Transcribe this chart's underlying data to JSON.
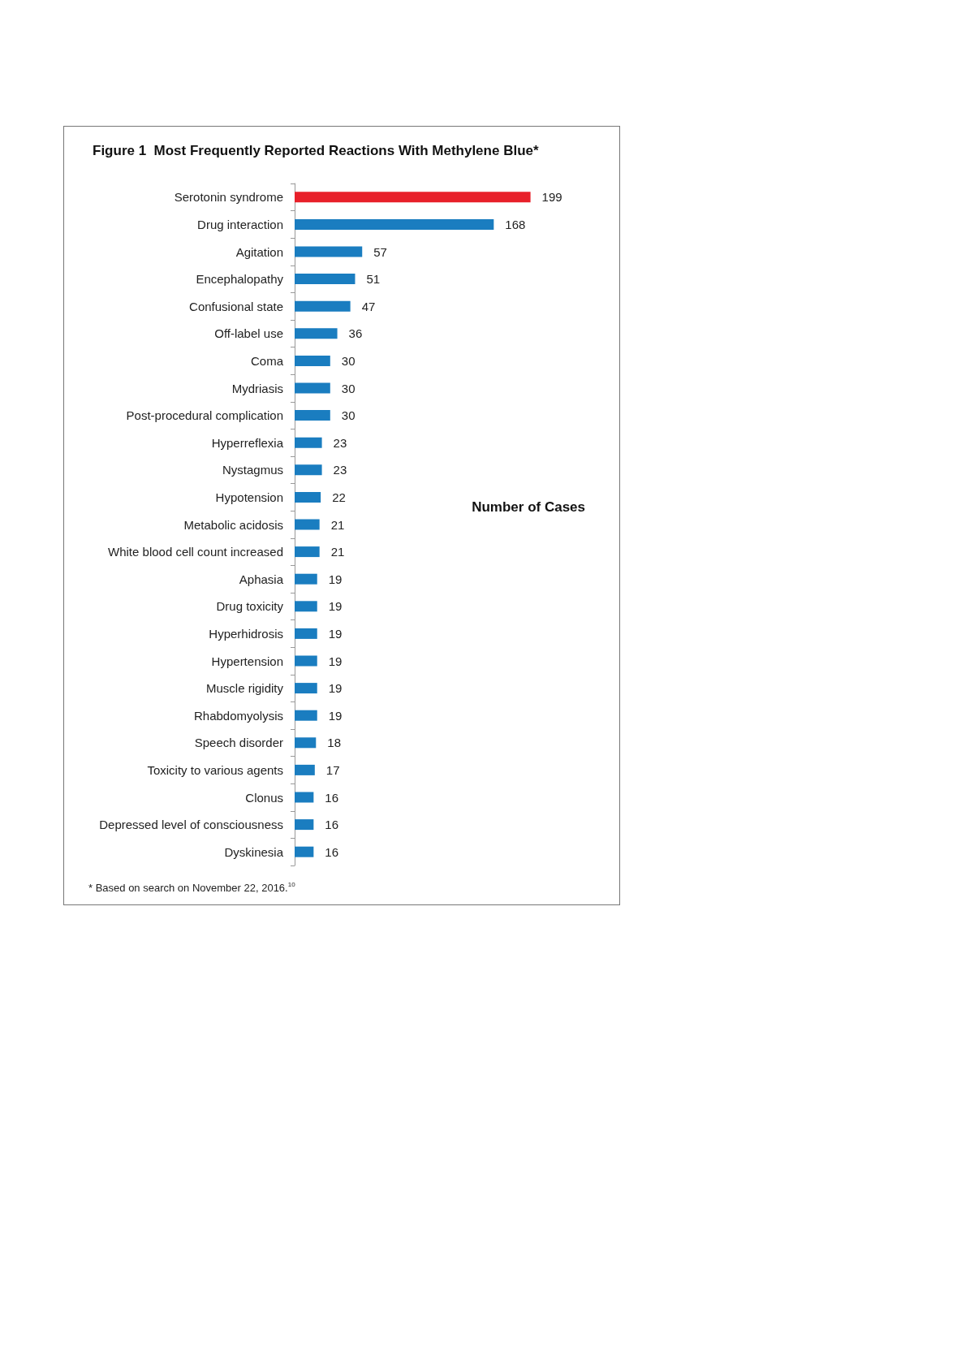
{
  "chart_data": {
    "type": "bar",
    "orientation": "horizontal",
    "title": "Figure 1  Most Frequently Reported Reactions With Methylene Blue*",
    "xlabel": "Number of Cases",
    "categories": [
      "Serotonin syndrome",
      "Drug interaction",
      "Agitation",
      "Encephalopathy",
      "Confusional state",
      "Off-label use",
      "Coma",
      "Mydriasis",
      "Post-procedural complication",
      "Hyperreflexia",
      "Nystagmus",
      "Hypotension",
      "Metabolic acidosis",
      "White blood cell count increased",
      "Aphasia",
      "Drug toxicity",
      "Hyperhidrosis",
      "Hypertension",
      "Muscle rigidity",
      "Rhabdomyolysis",
      "Speech disorder",
      "Toxicity to various agents",
      "Clonus",
      "Depressed level of consciousness",
      "Dyskinesia"
    ],
    "values": [
      199,
      168,
      57,
      51,
      47,
      36,
      30,
      30,
      30,
      23,
      23,
      22,
      21,
      21,
      19,
      19,
      19,
      19,
      19,
      19,
      18,
      17,
      16,
      16,
      16
    ],
    "colors": [
      "#e8202a",
      "#1a7dc0",
      "#1a7dc0",
      "#1a7dc0",
      "#1a7dc0",
      "#1a7dc0",
      "#1a7dc0",
      "#1a7dc0",
      "#1a7dc0",
      "#1a7dc0",
      "#1a7dc0",
      "#1a7dc0",
      "#1a7dc0",
      "#1a7dc0",
      "#1a7dc0",
      "#1a7dc0",
      "#1a7dc0",
      "#1a7dc0",
      "#1a7dc0",
      "#1a7dc0",
      "#1a7dc0",
      "#1a7dc0",
      "#1a7dc0",
      "#1a7dc0",
      "#1a7dc0"
    ],
    "data_labels": true,
    "annotations": [
      "* Based on search on November 22, 2016.$^{10}$"
    ]
  }
}
